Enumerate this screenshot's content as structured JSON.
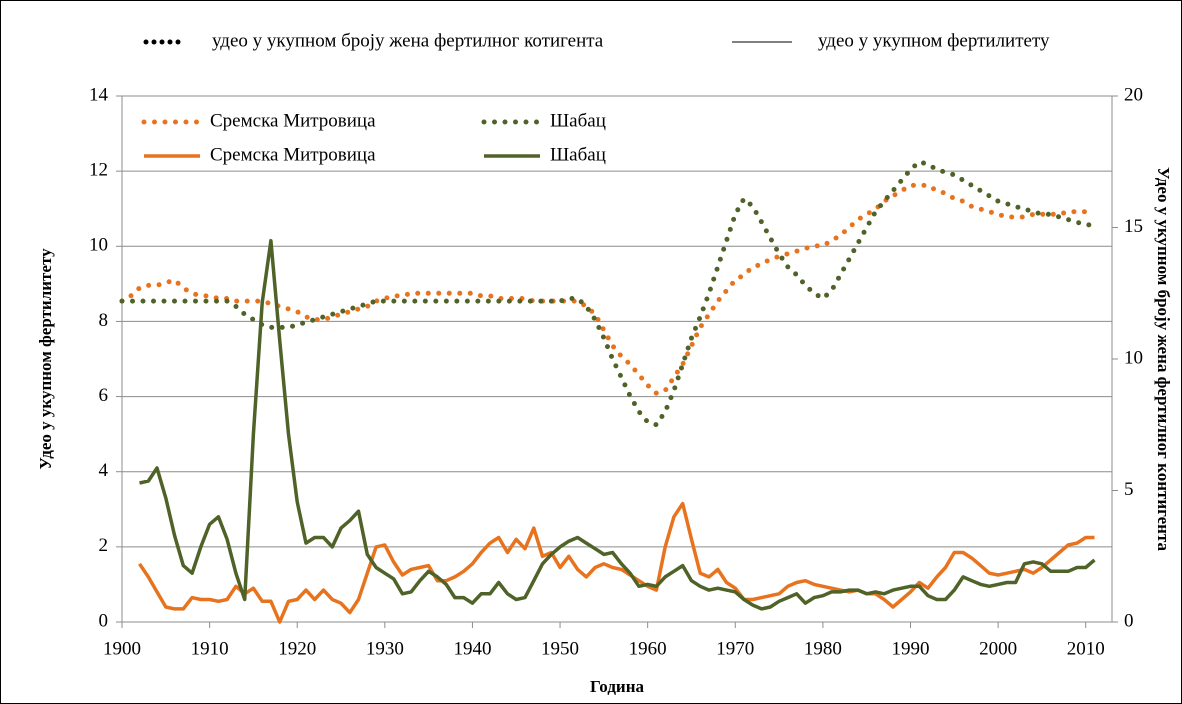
{
  "chart_data": {
    "type": "line",
    "legend_notes": [
      "удео у укупном броју жена фертилног котигента",
      "удео у укупном фертилитету"
    ],
    "xlabel": "Година",
    "ylabel": "Удео у укупном фертилитету",
    "y2label": "Удео у укупном броју жена фертилног контигента",
    "xlim": [
      1900,
      2013
    ],
    "xticks": [
      1900,
      1910,
      1920,
      1930,
      1940,
      1950,
      1960,
      1970,
      1980,
      1990,
      2000,
      2010
    ],
    "ylim": [
      0,
      14
    ],
    "yticks": [
      0,
      2,
      4,
      6,
      8,
      10,
      12,
      14
    ],
    "y2lim": [
      0,
      20
    ],
    "y2ticks": [
      0,
      5,
      10,
      15,
      20
    ],
    "grid": true,
    "legend": "upper left",
    "x": [
      1900,
      1901,
      1902,
      1903,
      1904,
      1905,
      1906,
      1907,
      1908,
      1909,
      1910,
      1911,
      1912,
      1913,
      1914,
      1915,
      1916,
      1917,
      1918,
      1919,
      1920,
      1921,
      1922,
      1923,
      1924,
      1925,
      1926,
      1927,
      1928,
      1929,
      1930,
      1931,
      1932,
      1933,
      1934,
      1935,
      1936,
      1937,
      1938,
      1939,
      1940,
      1941,
      1942,
      1943,
      1944,
      1945,
      1946,
      1947,
      1948,
      1949,
      1950,
      1951,
      1952,
      1953,
      1954,
      1955,
      1956,
      1957,
      1958,
      1959,
      1960,
      1961,
      1962,
      1963,
      1964,
      1965,
      1966,
      1967,
      1968,
      1969,
      1970,
      1971,
      1972,
      1973,
      1974,
      1975,
      1976,
      1977,
      1978,
      1979,
      1980,
      1981,
      1982,
      1983,
      1984,
      1985,
      1986,
      1987,
      1988,
      1989,
      1990,
      1991,
      1992,
      1993,
      1994,
      1995,
      1996,
      1997,
      1998,
      1999,
      2000,
      2001,
      2002,
      2003,
      2004,
      2005,
      2006,
      2007,
      2008,
      2009,
      2010,
      2011
    ],
    "series": [
      {
        "name": "Сремска Митровица",
        "color": "#e8731e",
        "style": "dotted",
        "axis": "y2",
        "values": [
          12.2,
          12.4,
          12.7,
          12.8,
          12.8,
          12.9,
          13.0,
          12.7,
          12.5,
          12.4,
          12.4,
          12.3,
          12.3,
          12.2,
          12.2,
          12.2,
          12.2,
          12.1,
          12.0,
          11.9,
          11.8,
          11.6,
          11.5,
          11.5,
          11.6,
          11.7,
          11.8,
          11.9,
          12.0,
          12.2,
          12.3,
          12.4,
          12.4,
          12.5,
          12.5,
          12.5,
          12.5,
          12.5,
          12.5,
          12.5,
          12.5,
          12.4,
          12.4,
          12.3,
          12.3,
          12.3,
          12.3,
          12.2,
          12.2,
          12.2,
          12.2,
          12.2,
          12.2,
          12.0,
          11.7,
          11.1,
          10.5,
          10.1,
          9.8,
          9.4,
          9.0,
          8.7,
          8.8,
          9.3,
          9.8,
          10.5,
          11.2,
          11.7,
          12.2,
          12.6,
          13.0,
          13.2,
          13.5,
          13.6,
          13.8,
          13.9,
          14.0,
          14.1,
          14.2,
          14.3,
          14.3,
          14.5,
          14.7,
          15.0,
          15.3,
          15.5,
          15.7,
          16.0,
          16.2,
          16.4,
          16.6,
          16.6,
          16.6,
          16.4,
          16.3,
          16.1,
          16.0,
          15.8,
          15.7,
          15.6,
          15.5,
          15.4,
          15.4,
          15.4,
          15.5,
          15.5,
          15.5,
          15.5,
          15.6,
          15.6,
          15.6,
          15.6
        ]
      },
      {
        "name": "Шабац",
        "color": "#4f6228",
        "style": "dotted",
        "axis": "y2",
        "values": [
          12.2,
          12.2,
          12.2,
          12.2,
          12.2,
          12.2,
          12.2,
          12.2,
          12.2,
          12.2,
          12.2,
          12.2,
          12.2,
          12.0,
          11.7,
          11.5,
          11.3,
          11.2,
          11.2,
          11.2,
          11.3,
          11.4,
          11.5,
          11.6,
          11.7,
          11.8,
          11.9,
          12.0,
          12.1,
          12.2,
          12.2,
          12.2,
          12.2,
          12.2,
          12.2,
          12.2,
          12.2,
          12.2,
          12.2,
          12.2,
          12.2,
          12.2,
          12.2,
          12.2,
          12.2,
          12.2,
          12.2,
          12.2,
          12.2,
          12.2,
          12.2,
          12.3,
          12.3,
          12.0,
          11.5,
          10.8,
          10.0,
          9.3,
          8.6,
          8.0,
          7.6,
          7.5,
          8.0,
          8.8,
          9.8,
          10.8,
          11.6,
          12.5,
          13.5,
          14.5,
          15.5,
          16.1,
          15.8,
          15.2,
          14.6,
          14.0,
          13.5,
          13.2,
          12.8,
          12.5,
          12.3,
          12.6,
          13.2,
          13.8,
          14.4,
          15.0,
          15.6,
          16.0,
          16.4,
          16.8,
          17.2,
          17.5,
          17.4,
          17.2,
          17.1,
          17.0,
          16.8,
          16.6,
          16.4,
          16.2,
          16.0,
          15.9,
          15.8,
          15.7,
          15.6,
          15.5,
          15.5,
          15.4,
          15.3,
          15.2,
          15.1,
          15.1
        ]
      },
      {
        "name": "Сремска Митровица",
        "color": "#e8731e",
        "style": "solid",
        "values": [
          null,
          null,
          1.55,
          1.2,
          0.8,
          0.4,
          0.35,
          0.35,
          0.65,
          0.6,
          0.6,
          0.55,
          0.6,
          0.95,
          0.75,
          0.9,
          0.55,
          0.55,
          0.0,
          0.55,
          0.6,
          0.85,
          0.6,
          0.85,
          0.6,
          0.5,
          0.25,
          0.6,
          1.3,
          2.0,
          2.05,
          1.6,
          1.25,
          1.4,
          1.45,
          1.5,
          1.1,
          1.1,
          1.2,
          1.35,
          1.55,
          1.85,
          2.1,
          2.25,
          1.85,
          2.2,
          1.95,
          2.5,
          1.75,
          1.85,
          1.45,
          1.75,
          1.4,
          1.2,
          1.45,
          1.55,
          1.45,
          1.4,
          1.25,
          1.1,
          0.95,
          0.85,
          2.0,
          2.8,
          3.15,
          2.2,
          1.3,
          1.2,
          1.4,
          1.05,
          0.9,
          0.6,
          0.6,
          0.65,
          0.7,
          0.75,
          0.95,
          1.05,
          1.1,
          1.0,
          0.95,
          0.9,
          0.85,
          0.8,
          0.85,
          0.75,
          0.75,
          0.6,
          0.4,
          0.6,
          0.8,
          1.05,
          0.9,
          1.2,
          1.45,
          1.85,
          1.85,
          1.7,
          1.5,
          1.3,
          1.25,
          1.3,
          1.35,
          1.4,
          1.3,
          1.45,
          1.65,
          1.85,
          2.05,
          2.1,
          2.25,
          2.25
        ]
      },
      {
        "name": "Шабац",
        "color": "#4f6228",
        "style": "solid",
        "values": [
          null,
          null,
          3.7,
          3.75,
          4.1,
          3.3,
          2.3,
          1.5,
          1.3,
          2.0,
          2.6,
          2.8,
          2.2,
          1.3,
          0.6,
          5.0,
          8.5,
          10.15,
          7.5,
          5.0,
          3.2,
          2.1,
          2.25,
          2.25,
          2.0,
          2.5,
          2.7,
          2.95,
          1.8,
          1.45,
          1.3,
          1.15,
          0.75,
          0.8,
          1.1,
          1.35,
          1.2,
          1.0,
          0.65,
          0.65,
          0.5,
          0.75,
          0.75,
          1.05,
          0.75,
          0.6,
          0.65,
          1.1,
          1.55,
          1.8,
          2.0,
          2.15,
          2.25,
          2.1,
          1.95,
          1.8,
          1.85,
          1.55,
          1.3,
          0.95,
          1.0,
          0.95,
          1.2,
          1.35,
          1.5,
          1.1,
          0.95,
          0.85,
          0.9,
          0.85,
          0.8,
          0.6,
          0.45,
          0.35,
          0.4,
          0.55,
          0.65,
          0.75,
          0.5,
          0.65,
          0.7,
          0.8,
          0.8,
          0.85,
          0.85,
          0.75,
          0.8,
          0.75,
          0.85,
          0.9,
          0.95,
          0.95,
          0.7,
          0.6,
          0.6,
          0.85,
          1.2,
          1.1,
          1.0,
          0.95,
          1.0,
          1.05,
          1.05,
          1.55,
          1.6,
          1.55,
          1.35,
          1.35,
          1.35,
          1.45,
          1.45,
          1.65
        ]
      }
    ]
  }
}
